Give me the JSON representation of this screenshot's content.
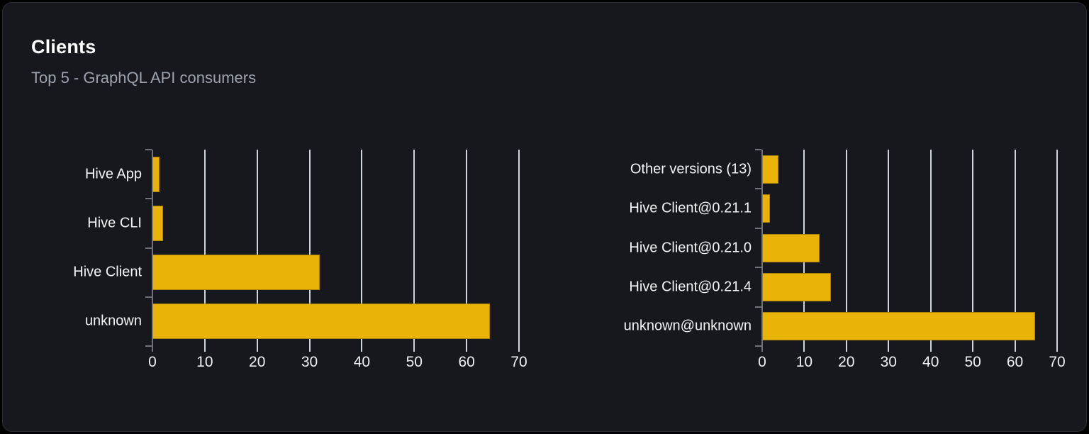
{
  "card": {
    "title": "Clients",
    "subtitle": "Top 5 - GraphQL API consumers"
  },
  "colors": {
    "bar": "#eab308",
    "card_background": "#16181d",
    "page_background": "#000000",
    "gridline": "#d9dfe8",
    "axis": "#6e737a",
    "label_text": "#f3f4f6",
    "subtitle_text": "#9ca3af",
    "card_border": "#2d3036"
  },
  "chart_data": [
    {
      "type": "bar",
      "orientation": "horizontal",
      "title": "",
      "categories": [
        "Hive App",
        "Hive CLI",
        "Hive Client",
        "unknown"
      ],
      "values": [
        1.4,
        2,
        32,
        64.4
      ],
      "xlim": [
        0,
        70
      ],
      "xticks": [
        0,
        10,
        20,
        30,
        40,
        50,
        60,
        70
      ],
      "grid": true,
      "legend": false,
      "bar_color": "#eab308"
    },
    {
      "type": "bar",
      "orientation": "horizontal",
      "title": "",
      "categories": [
        "Other versions (13)",
        "Hive Client@0.21.1",
        "Hive Client@0.21.0",
        "Hive Client@0.21.4",
        "unknown@unknown"
      ],
      "values": [
        3.8,
        1.8,
        13.7,
        16.3,
        64.7
      ],
      "xlim": [
        0,
        70
      ],
      "xticks": [
        0,
        10,
        20,
        30,
        40,
        50,
        60,
        70
      ],
      "grid": true,
      "legend": false,
      "bar_color": "#eab308"
    }
  ]
}
